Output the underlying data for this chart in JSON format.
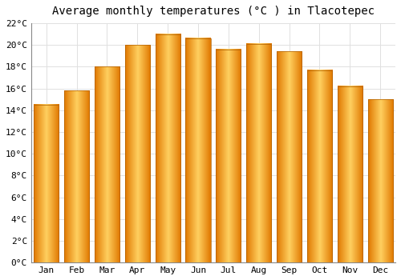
{
  "title": "Average monthly temperatures (°C ) in Tlacotepec",
  "months": [
    "Jan",
    "Feb",
    "Mar",
    "Apr",
    "May",
    "Jun",
    "Jul",
    "Aug",
    "Sep",
    "Oct",
    "Nov",
    "Dec"
  ],
  "values": [
    14.5,
    15.8,
    18.0,
    20.0,
    21.0,
    20.6,
    19.6,
    20.1,
    19.4,
    17.7,
    16.2,
    15.0
  ],
  "bar_color_main": "#FFAA00",
  "bar_color_edge": "#E08000",
  "ylim": [
    0,
    22
  ],
  "ytick_step": 2,
  "background_color": "#FFFFFF",
  "grid_color": "#E0E0E0",
  "title_fontsize": 10,
  "tick_fontsize": 8,
  "font_family": "monospace"
}
